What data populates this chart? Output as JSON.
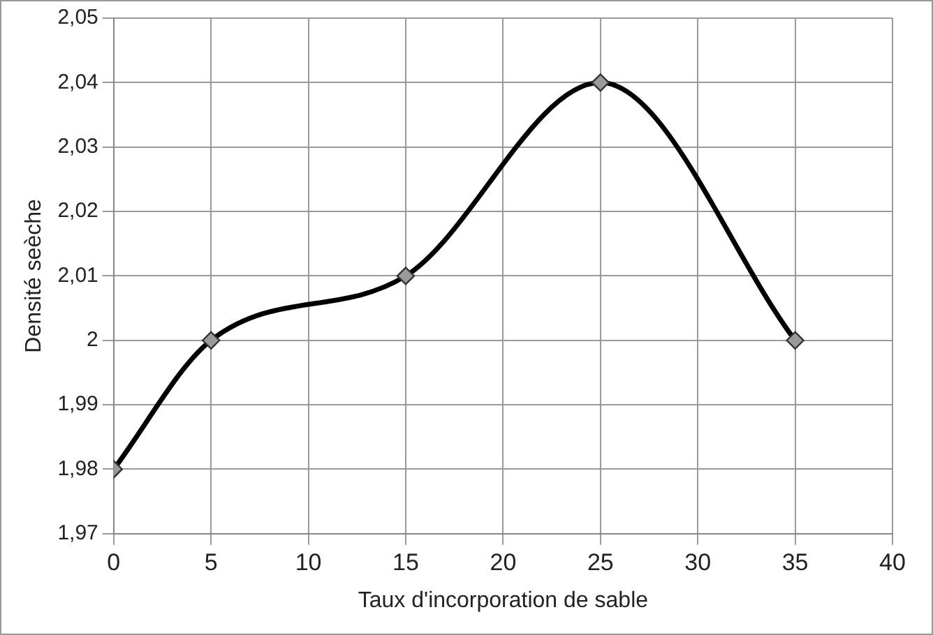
{
  "chart_data": {
    "type": "line",
    "xlabel": "Taux d'incorporation de sable",
    "ylabel": "Densité seèche",
    "x": [
      0,
      5,
      15,
      25,
      35
    ],
    "series": [
      {
        "color": "#000000",
        "values": [
          1.98,
          2.0,
          2.01,
          2.04,
          2.0
        ]
      }
    ],
    "xlim": [
      0,
      40
    ],
    "xticks": [
      0,
      5,
      10,
      15,
      20,
      25,
      30,
      35,
      40
    ],
    "ylim": [
      1.97,
      2.05
    ],
    "yticks": [
      {
        "value": 1.97,
        "label": "1,97"
      },
      {
        "value": 1.98,
        "label": "1,98"
      },
      {
        "value": 1.99,
        "label": "1,99"
      },
      2,
      {
        "value": 2.01,
        "label": "2,01"
      },
      {
        "value": 2.02,
        "label": "2,02"
      },
      {
        "value": 2.03,
        "label": "2,03"
      },
      {
        "value": 2.04,
        "label": "2,04"
      },
      {
        "value": 2.05,
        "label": "2,05"
      }
    ],
    "grid": true,
    "legend": false,
    "marker": "diamond",
    "line_style": "solid"
  }
}
